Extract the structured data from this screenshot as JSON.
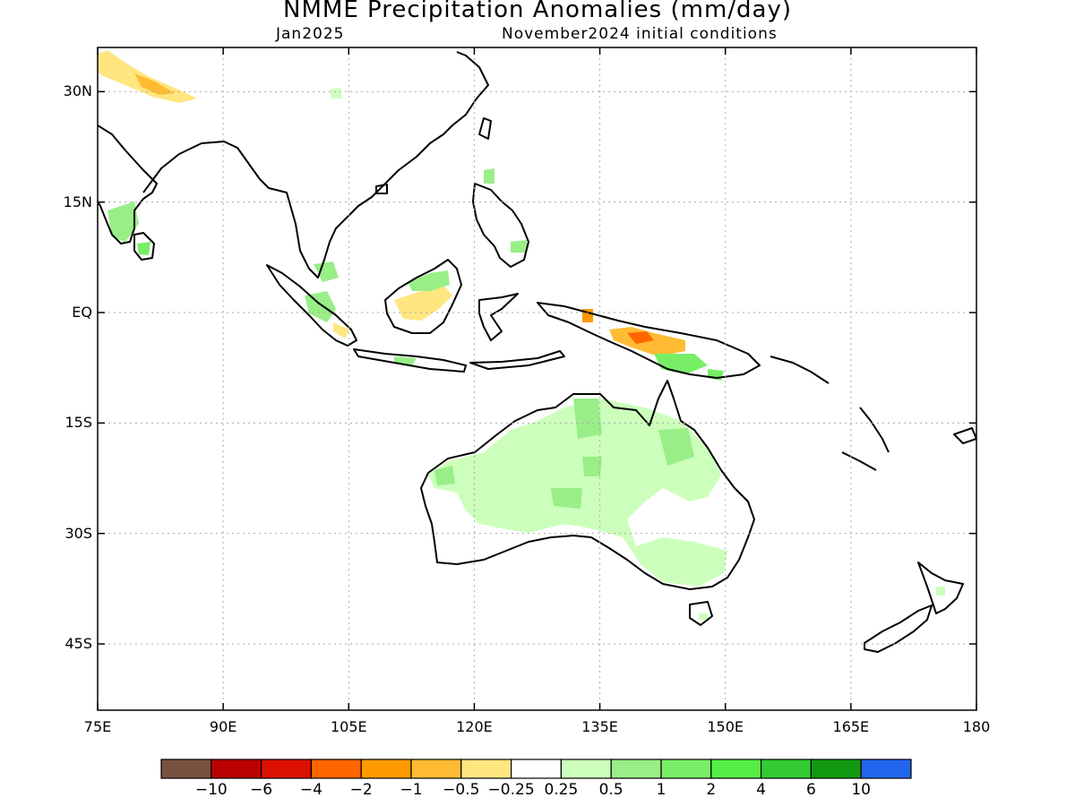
{
  "title": "NMME Precipitation Anomalies (mm/day)",
  "subtitle_left": "Jan2025",
  "subtitle_right": "November2024 initial conditions",
  "map": {
    "lon_range": [
      75,
      180
    ],
    "lat_range": [
      -54,
      36
    ],
    "lat_ticks": [
      {
        "value": 30,
        "label": "30N"
      },
      {
        "value": 15,
        "label": "15N"
      },
      {
        "value": 0,
        "label": "EQ"
      },
      {
        "value": -15,
        "label": "15S"
      },
      {
        "value": -30,
        "label": "30S"
      },
      {
        "value": -45,
        "label": "45S"
      }
    ],
    "lon_ticks": [
      {
        "value": 75,
        "label": "75E"
      },
      {
        "value": 90,
        "label": "90E"
      },
      {
        "value": 105,
        "label": "105E"
      },
      {
        "value": 120,
        "label": "120E"
      },
      {
        "value": 135,
        "label": "135E"
      },
      {
        "value": 150,
        "label": "150E"
      },
      {
        "value": 165,
        "label": "165E"
      },
      {
        "value": 180,
        "label": "180"
      }
    ],
    "grid": true
  },
  "colorbar": {
    "colors": [
      "#7a5040",
      "#bb0000",
      "#dd1100",
      "#ff6600",
      "#ff9900",
      "#ffbb33",
      "#ffe680",
      "#ffffff",
      "#ccffbb",
      "#99ee88",
      "#77ee66",
      "#55ee44",
      "#33cc33",
      "#119911",
      "#2266ee"
    ],
    "labels": [
      "-10",
      "-6",
      "-4",
      "-2",
      "-1",
      "-0.5",
      "-0.25",
      "0.25",
      "0.5",
      "1",
      "2",
      "4",
      "6",
      "10"
    ]
  }
}
